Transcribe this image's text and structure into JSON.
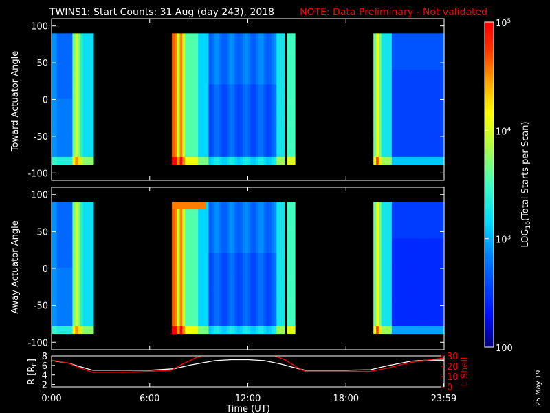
{
  "title": {
    "main": "TWINS1: Start Counts: 31 Aug (day 243), 2018",
    "note": "NOTE: Data Preliminary - Not validated",
    "note_color": "#ff0000"
  },
  "date_stamp": "25 May 19",
  "chart_data": [
    {
      "type": "heatmap",
      "ylabel": "Toward Actuator Angle",
      "ylim": [
        -110,
        110
      ],
      "yticks": [
        100,
        50,
        0,
        -50,
        -100
      ],
      "data_y_range": [
        -88,
        90
      ],
      "xlim_hours": [
        0,
        24
      ],
      "data_segments_hours": [
        [
          0,
          2.5
        ],
        [
          7.3,
          14.2
        ],
        [
          14.4,
          14.8
        ],
        [
          19.7,
          24
        ]
      ],
      "colorscale": "log10",
      "value_range": [
        100,
        100000
      ]
    },
    {
      "type": "heatmap",
      "ylabel": "Away Actuator Angle",
      "ylim": [
        -110,
        110
      ],
      "yticks": [
        100,
        50,
        0,
        -50,
        -100
      ],
      "data_y_range": [
        -88,
        90
      ],
      "xlim_hours": [
        0,
        24
      ],
      "data_segments_hours": [
        [
          0,
          2.5
        ],
        [
          7.3,
          14.2
        ],
        [
          14.4,
          14.8
        ],
        [
          19.7,
          24
        ]
      ],
      "colorscale": "log10",
      "value_range": [
        100,
        100000
      ]
    },
    {
      "type": "line",
      "xlabel": "Time (UT)",
      "xticks": [
        "0:00",
        "6:00",
        "12:00",
        "18:00",
        "23:59"
      ],
      "xtick_hours": [
        0,
        6,
        12,
        18,
        23.98
      ],
      "ylabel_left": "R [R",
      "ylabel_left_sub": "E",
      "ylabel_left_close": "]",
      "yticks_left": [
        "2",
        "4",
        "6",
        "8"
      ],
      "ylim_left": [
        1.5,
        8
      ],
      "ylabel_right": "L Shell",
      "yticks_right": [
        "0",
        "10",
        "20",
        "30"
      ],
      "ylim_right": [
        0,
        30
      ],
      "series": [
        {
          "axis": "left",
          "color": "#ffffff",
          "x": [
            0,
            1,
            2.5,
            4,
            6,
            7.5,
            8.5,
            10,
            11,
            12,
            13,
            14,
            15,
            15.5,
            16,
            18,
            19.5,
            20.5,
            22,
            23,
            24
          ],
          "y": [
            7.0,
            6.5,
            5.0,
            5.0,
            5.0,
            5.3,
            6.1,
            7.0,
            7.2,
            7.2,
            7.0,
            6.3,
            5.4,
            5.0,
            5.0,
            5.0,
            5.1,
            5.9,
            6.9,
            7.1,
            7.1
          ]
        },
        {
          "axis": "right",
          "color": "#ff0000",
          "x": [
            0,
            1,
            2.5,
            4,
            6,
            7.3,
            8,
            8.8,
            9.3,
            13.5,
            14.3,
            15,
            15.5,
            17,
            19.5,
            20.5,
            21.5,
            22.5,
            23.5,
            24
          ],
          "y": [
            26,
            23,
            14,
            14,
            15,
            16,
            22,
            28,
            31,
            31,
            26,
            19,
            15,
            15,
            15,
            18,
            22,
            25,
            27,
            28
          ]
        }
      ]
    }
  ],
  "colorbar": {
    "label": "LOG",
    "label_sub": "10",
    "label_rest": "(Total Starts per Scan)",
    "ticks": [
      {
        "base": "10",
        "exp": "5"
      },
      {
        "base": "10",
        "exp": "4"
      },
      {
        "base": "10",
        "exp": "3"
      },
      {
        "base": "100",
        "exp": ""
      }
    ],
    "tick_values": [
      100000,
      10000,
      1000,
      100
    ]
  }
}
